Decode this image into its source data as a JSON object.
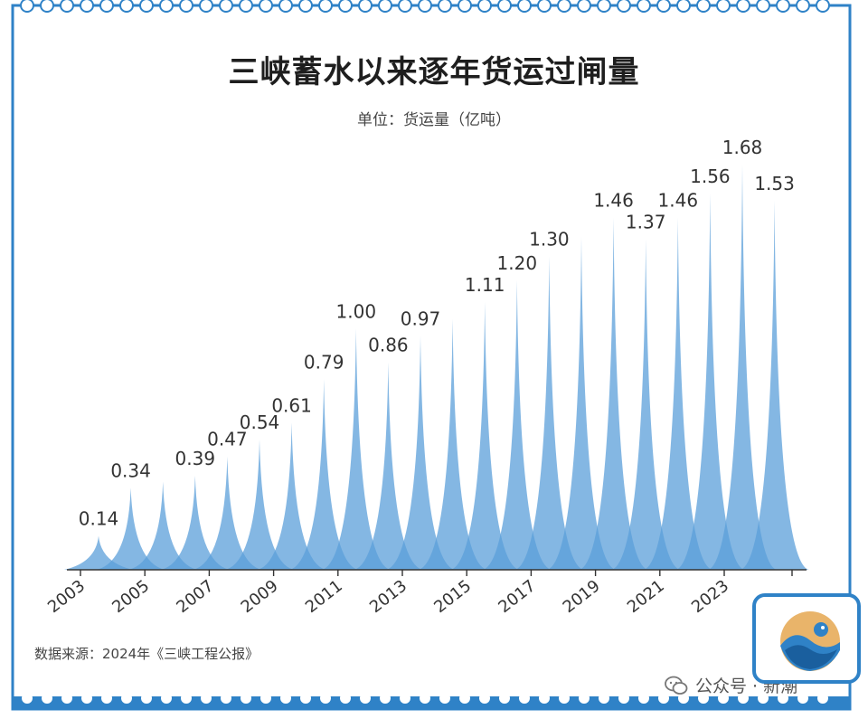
{
  "title": "三峡蓄水以来逐年货运过闸量",
  "unit_label": "单位：货运量（亿吨）",
  "source": "数据来源：2024年《三峡工程公报》",
  "watermark": "公众号 · 新潮",
  "colors": {
    "frame": "#2f82c7",
    "fill": "#5b9fd9",
    "axis": "#333333",
    "text": "#333333"
  },
  "icons": [
    "wechat-icon",
    "logo-icon"
  ],
  "chart_data": {
    "type": "area",
    "title": "三峡蓄水以来逐年货运过闸量",
    "ylabel": "单位：货运量（亿吨）",
    "xlabel": "",
    "x": [
      2003,
      2004,
      2005,
      2006,
      2007,
      2008,
      2009,
      2010,
      2011,
      2012,
      2013,
      2014,
      2015,
      2016,
      2017,
      2018,
      2019,
      2020,
      2021,
      2022,
      2023,
      2024
    ],
    "values": [
      0.14,
      0.34,
      null,
      0.39,
      0.47,
      0.54,
      0.61,
      0.79,
      1.0,
      0.86,
      0.97,
      null,
      1.11,
      1.2,
      1.3,
      null,
      1.46,
      1.37,
      1.46,
      1.56,
      1.68,
      1.53
    ],
    "value_labels": [
      "0.14",
      "0.34",
      "",
      "0.39",
      "0.47",
      "0.54",
      "0.61",
      "0.79",
      "1.00",
      "0.86",
      "0.97",
      "",
      "1.11",
      "1.20",
      "1.30",
      "",
      "1.46",
      "1.37",
      "1.46",
      "1.56",
      "1.68",
      "1.53"
    ],
    "x_tick_labels": [
      "2003",
      "2005",
      "2007",
      "2009",
      "2011",
      "2013",
      "2015",
      "2017",
      "2019",
      "2021",
      "2023"
    ],
    "grid": false,
    "legend": "none"
  }
}
